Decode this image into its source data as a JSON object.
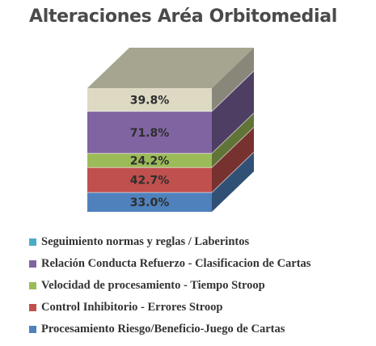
{
  "chart_data": {
    "type": "bar",
    "subtype": "3d-stacked-column",
    "title": "Alteraciones Aréa Orbitomedial",
    "legend_position": "bottom",
    "series": [
      {
        "name": "Procesamiento Riesgo/Beneficio-Juego de Cartas",
        "value": 33.0,
        "label": "33.0%",
        "color": "#4f81bd"
      },
      {
        "name": "Control Inhibitorio - Errores Stroop",
        "value": 42.7,
        "label": "42.7%",
        "color": "#c0504d"
      },
      {
        "name": "Velocidad de procesamiento - Tiempo Stroop",
        "value": 24.2,
        "label": "24.2%",
        "color": "#9bbb59"
      },
      {
        "name": "Relación Conducta Refuerzo - Clasificacion de Cartas",
        "value": 71.8,
        "label": "71.8%",
        "color": "#8064a2"
      },
      {
        "name": "Seguimiento normas y reglas / Laberintos",
        "value": 39.8,
        "label": "39.8%",
        "color": "#ddd9c3"
      }
    ],
    "legend": [
      {
        "name": "Seguimiento normas y reglas / Laberintos",
        "color": "#4bacc6"
      },
      {
        "name": "Relación Conducta Refuerzo - Clasificacion de Cartas",
        "color": "#8064a2"
      },
      {
        "name": "Velocidad de procesamiento - Tiempo Stroop",
        "color": "#9bbb59"
      },
      {
        "name": "Control Inhibitorio - Errores Stroop",
        "color": "#c0504d"
      },
      {
        "name": "Procesamiento Riesgo/Beneficio-Juego de Cartas",
        "color": "#4f81bd"
      }
    ],
    "top_face_color": "#a6a590"
  }
}
